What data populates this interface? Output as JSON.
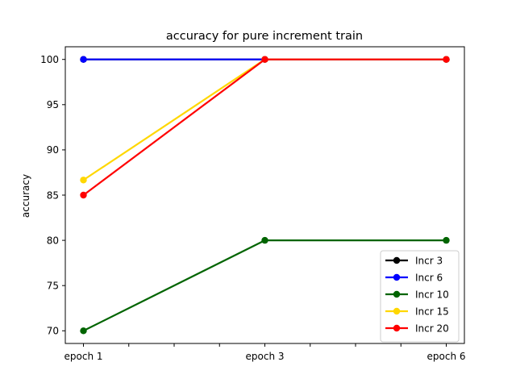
{
  "chart_data": {
    "type": "line",
    "title": "accuracy for pure increment train",
    "xlabel": "",
    "ylabel": "accuracy",
    "categories": [
      "epoch 1",
      "epoch 3",
      "epoch 6"
    ],
    "x_ticks": [
      "epoch 1",
      "",
      "",
      "",
      "epoch 3",
      "",
      "",
      "",
      "epoch 6"
    ],
    "y_ticks": [
      70,
      75,
      80,
      85,
      90,
      95,
      100
    ],
    "ylim": [
      68.6,
      101.4
    ],
    "grid": false,
    "legend_position": "lower-right",
    "series": [
      {
        "name": "Incr 3",
        "color": "#000000",
        "values": [
          100,
          100,
          100
        ]
      },
      {
        "name": "Incr 6",
        "color": "#0000ff",
        "values": [
          100,
          100,
          100
        ]
      },
      {
        "name": "Incr 10",
        "color": "#006400",
        "values": [
          70,
          80,
          80
        ]
      },
      {
        "name": "Incr 15",
        "color": "#ffd700",
        "values": [
          86.67,
          100,
          100
        ]
      },
      {
        "name": "Incr 20",
        "color": "#ff0000",
        "values": [
          85,
          100,
          100
        ]
      }
    ]
  }
}
